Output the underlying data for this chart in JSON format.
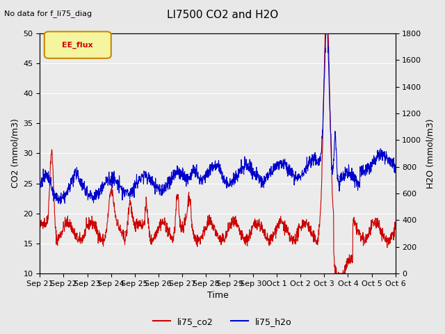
{
  "title": "LI7500 CO2 and H2O",
  "subtitle": "No data for f_li75_diag",
  "xlabel": "Time",
  "ylabel_left": "CO2 (mmol/m3)",
  "ylabel_right": "H2O (mmol/m3)",
  "ylim_left": [
    10,
    50
  ],
  "ylim_right": [
    0,
    1800
  ],
  "yticks_left": [
    10,
    15,
    20,
    25,
    30,
    35,
    40,
    45,
    50
  ],
  "yticks_right": [
    0,
    200,
    400,
    600,
    800,
    1000,
    1200,
    1400,
    1600,
    1800
  ],
  "bg_color": "#e8e8e8",
  "plot_bg_color": "#ebebeb",
  "co2_color": "#cc0000",
  "h2o_color": "#0000cc",
  "legend_label_co2": "li75_co2",
  "legend_label_h2o": "li75_h2o",
  "tag_label": "EE_flux",
  "tag_bg": "#f5f5a0",
  "tag_border": "#cc8800",
  "tag_text_color": "#cc0000",
  "tick_positions": [
    0,
    1,
    2,
    3,
    4,
    5,
    6,
    7,
    8,
    9,
    10,
    11,
    12,
    13,
    14,
    15
  ],
  "tick_dates": [
    "Sep 21",
    "Sep 22",
    "Sep 23",
    "Sep 24",
    "Sep 25",
    "Sep 26",
    "Sep 27",
    "Sep 28",
    "Sep 29",
    "Sep 30",
    "Oct 1",
    "Oct 2",
    "Oct 3",
    "Oct 4",
    "Oct 5",
    "Oct 6"
  ]
}
